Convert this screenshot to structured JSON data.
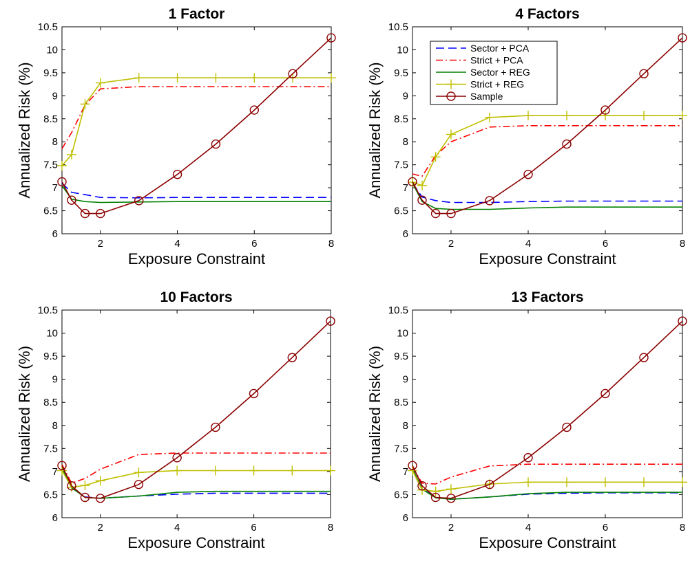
{
  "colors": {
    "sector_pca": "#0000ff",
    "strict_pca": "#ff0000",
    "sector_reg": "#008000",
    "strict_reg": "#bfbf00",
    "sample": "#8b0000"
  },
  "chart_data": [
    {
      "type": "line",
      "title": "1 Factor",
      "xlabel": "Exposure Constraint",
      "ylabel": "Annualized Risk (%)",
      "xlim": [
        1,
        8
      ],
      "ylim": [
        6,
        10.5
      ],
      "xticks": [
        "2",
        "4",
        "6",
        "8"
      ],
      "yticks": [
        "6",
        "6.5",
        "7",
        "7.5",
        "8",
        "8.5",
        "9",
        "9.5",
        "10",
        "10.5"
      ],
      "legend": null,
      "series": [
        {
          "name": "Sector + PCA",
          "x": [
            1,
            1.25,
            1.6,
            2,
            3,
            4,
            5,
            6,
            7,
            8
          ],
          "values": [
            7.1,
            6.9,
            6.85,
            6.79,
            6.78,
            6.79,
            6.79,
            6.79,
            6.79,
            6.79
          ]
        },
        {
          "name": "Strict + PCA",
          "x": [
            1,
            1.25,
            1.6,
            2,
            3,
            4,
            5,
            6,
            7,
            8
          ],
          "values": [
            7.85,
            8.2,
            8.8,
            9.15,
            9.2,
            9.2,
            9.2,
            9.2,
            9.2,
            9.2
          ]
        },
        {
          "name": "Sector + REG",
          "x": [
            1,
            1.25,
            1.6,
            2,
            3,
            4,
            5,
            6,
            7,
            8
          ],
          "values": [
            7.05,
            6.75,
            6.7,
            6.68,
            6.69,
            6.7,
            6.7,
            6.7,
            6.7,
            6.7
          ]
        },
        {
          "name": "Strict + REG",
          "x": [
            1,
            1.25,
            1.6,
            2,
            3,
            4,
            5,
            6,
            7,
            8
          ],
          "values": [
            7.48,
            7.72,
            8.82,
            9.28,
            9.39,
            9.39,
            9.39,
            9.39,
            9.39,
            9.39
          ]
        },
        {
          "name": "Sample",
          "x": [
            1,
            1.25,
            1.6,
            2,
            3,
            4,
            5,
            6,
            7,
            8
          ],
          "values": [
            7.13,
            6.73,
            6.44,
            6.44,
            6.72,
            7.29,
            7.95,
            8.69,
            9.48,
            10.26
          ]
        }
      ]
    },
    {
      "type": "line",
      "title": "4 Factors",
      "xlabel": "Exposure Constraint",
      "ylabel": "Annualized Risk (%)",
      "xlim": [
        1,
        8
      ],
      "ylim": [
        6,
        10.5
      ],
      "xticks": [
        "2",
        "4",
        "6",
        "8"
      ],
      "yticks": [
        "6",
        "6.5",
        "7",
        "7.5",
        "8",
        "8.5",
        "9",
        "9.5",
        "10",
        "10.5"
      ],
      "legend": "top-left",
      "series": [
        {
          "name": "Sector + PCA",
          "x": [
            1,
            1.25,
            1.6,
            2,
            3,
            4,
            5,
            6,
            7,
            8
          ],
          "values": [
            7.1,
            6.8,
            6.72,
            6.68,
            6.68,
            6.7,
            6.71,
            6.71,
            6.71,
            6.71
          ]
        },
        {
          "name": "Strict + PCA",
          "x": [
            1,
            1.25,
            1.6,
            2,
            3,
            4,
            5,
            6,
            7,
            8
          ],
          "values": [
            7.3,
            7.25,
            7.7,
            8.0,
            8.32,
            8.35,
            8.35,
            8.35,
            8.35,
            8.35
          ]
        },
        {
          "name": "Sector + REG",
          "x": [
            1,
            1.25,
            1.6,
            2,
            3,
            4,
            5,
            6,
            7,
            8
          ],
          "values": [
            7.1,
            6.7,
            6.55,
            6.53,
            6.53,
            6.56,
            6.58,
            6.58,
            6.58,
            6.58
          ]
        },
        {
          "name": "Strict + REG",
          "x": [
            1,
            1.25,
            1.6,
            2,
            3,
            4,
            5,
            6,
            7,
            8
          ],
          "values": [
            7.12,
            7.05,
            7.67,
            8.16,
            8.53,
            8.57,
            8.57,
            8.57,
            8.57,
            8.57
          ]
        },
        {
          "name": "Sample",
          "x": [
            1,
            1.25,
            1.6,
            2,
            3,
            4,
            5,
            6,
            7,
            8
          ],
          "values": [
            7.13,
            6.73,
            6.44,
            6.44,
            6.72,
            7.29,
            7.95,
            8.69,
            9.48,
            10.26
          ]
        }
      ]
    },
    {
      "type": "line",
      "title": "10 Factors",
      "xlabel": "Exposure Constraint",
      "ylabel": "Annualized Risk (%)",
      "xlim": [
        1,
        8
      ],
      "ylim": [
        6,
        10.5
      ],
      "xticks": [
        "2",
        "4",
        "6",
        "8"
      ],
      "yticks": [
        "6",
        "6.5",
        "7",
        "7.5",
        "8",
        "8.5",
        "9",
        "9.5",
        "10",
        "10.5"
      ],
      "legend": null,
      "series": [
        {
          "name": "Sector + PCA",
          "x": [
            1,
            1.25,
            1.6,
            2,
            3,
            4,
            5,
            6,
            7,
            8
          ],
          "values": [
            7.08,
            6.65,
            6.45,
            6.42,
            6.47,
            6.51,
            6.53,
            6.53,
            6.53,
            6.53
          ]
        },
        {
          "name": "Strict + PCA",
          "x": [
            1,
            1.25,
            1.6,
            2,
            3,
            4,
            5,
            6,
            7,
            8
          ],
          "values": [
            7.15,
            6.75,
            6.85,
            7.05,
            7.37,
            7.4,
            7.4,
            7.4,
            7.4,
            7.4
          ]
        },
        {
          "name": "Sector + REG",
          "x": [
            1,
            1.25,
            1.6,
            2,
            3,
            4,
            5,
            6,
            7,
            8
          ],
          "values": [
            7.08,
            6.65,
            6.44,
            6.42,
            6.47,
            6.55,
            6.57,
            6.57,
            6.57,
            6.57
          ]
        },
        {
          "name": "Strict + REG",
          "x": [
            1,
            1.25,
            1.6,
            2,
            3,
            4,
            5,
            6,
            7,
            8
          ],
          "values": [
            7.02,
            6.66,
            6.7,
            6.8,
            6.98,
            7.02,
            7.02,
            7.02,
            7.02,
            7.02
          ]
        },
        {
          "name": "Sample",
          "x": [
            1,
            1.25,
            1.6,
            2,
            3,
            4,
            5,
            6,
            7,
            8
          ],
          "values": [
            7.13,
            6.69,
            6.44,
            6.42,
            6.72,
            7.3,
            7.96,
            8.69,
            9.47,
            10.26
          ]
        }
      ]
    },
    {
      "type": "line",
      "title": "13 Factors",
      "xlabel": "Exposure Constraint",
      "ylabel": "Annualized Risk (%)",
      "xlim": [
        1,
        8
      ],
      "ylim": [
        6,
        10.5
      ],
      "xticks": [
        "2",
        "4",
        "6",
        "8"
      ],
      "yticks": [
        "6",
        "6.5",
        "7",
        "7.5",
        "8",
        "8.5",
        "9",
        "9.5",
        "10",
        "10.5"
      ],
      "legend": null,
      "series": [
        {
          "name": "Sector + PCA",
          "x": [
            1,
            1.25,
            1.6,
            2,
            3,
            4,
            5,
            6,
            7,
            8
          ],
          "values": [
            7.06,
            6.63,
            6.44,
            6.4,
            6.45,
            6.51,
            6.53,
            6.54,
            6.54,
            6.54
          ]
        },
        {
          "name": "Strict + PCA",
          "x": [
            1,
            1.25,
            1.6,
            2,
            3,
            4,
            5,
            6,
            7,
            8
          ],
          "values": [
            7.1,
            6.75,
            6.73,
            6.88,
            7.12,
            7.16,
            7.16,
            7.16,
            7.16,
            7.16
          ]
        },
        {
          "name": "Sector + REG",
          "x": [
            1,
            1.25,
            1.6,
            2,
            3,
            4,
            5,
            6,
            7,
            8
          ],
          "values": [
            7.06,
            6.62,
            6.43,
            6.4,
            6.45,
            6.52,
            6.55,
            6.55,
            6.55,
            6.55
          ]
        },
        {
          "name": "Strict + REG",
          "x": [
            1,
            1.25,
            1.6,
            2,
            3,
            4,
            5,
            6,
            7,
            8
          ],
          "values": [
            7.02,
            6.6,
            6.57,
            6.62,
            6.73,
            6.77,
            6.77,
            6.77,
            6.77,
            6.77
          ]
        },
        {
          "name": "Sample",
          "x": [
            1,
            1.25,
            1.6,
            2,
            3,
            4,
            5,
            6,
            7,
            8
          ],
          "values": [
            7.13,
            6.69,
            6.44,
            6.42,
            6.72,
            7.3,
            7.96,
            8.69,
            9.47,
            10.26
          ]
        }
      ]
    }
  ]
}
